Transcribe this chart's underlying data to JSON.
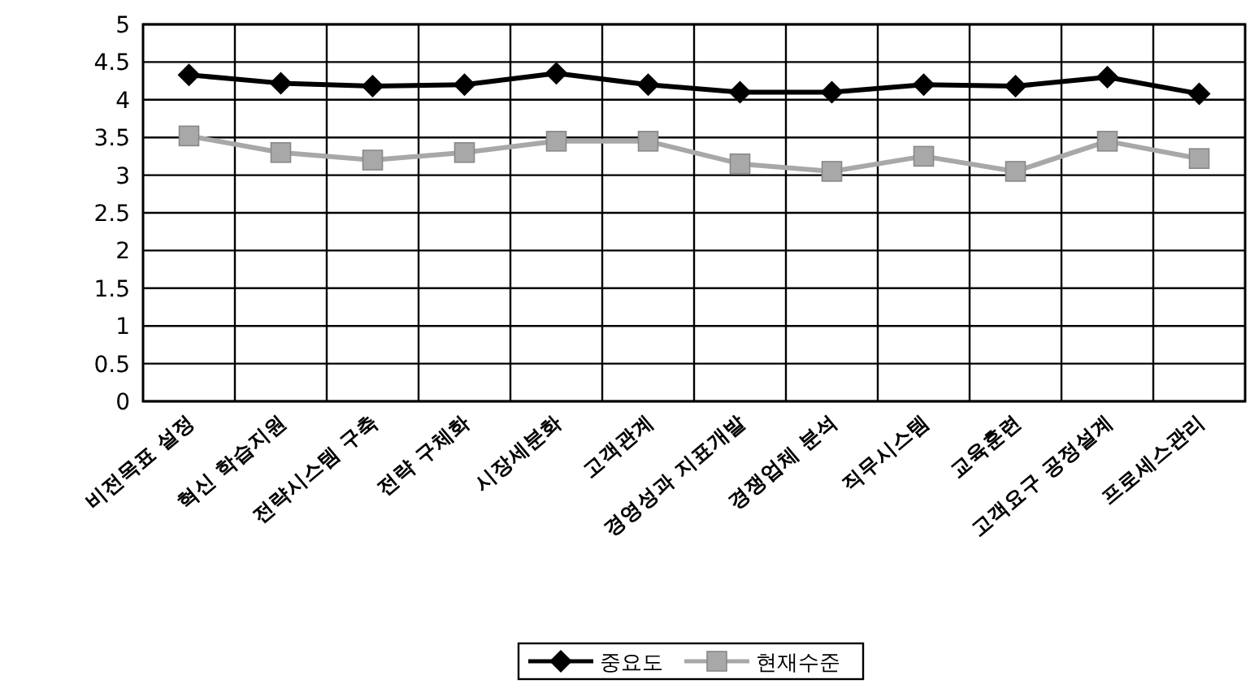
{
  "chart_data": {
    "type": "line",
    "categories": [
      "비전목표 설정",
      "혁신 학습지원",
      "전략시스템 구축",
      "전략 구체화",
      "시장세분화",
      "고객관계",
      "경영성과 지표개발",
      "경쟁업체 분석",
      "직무시스템",
      "교육훈련",
      "고객요구 공정설계",
      "프로세스관리"
    ],
    "series": [
      {
        "name": "중요도",
        "color": "#000000",
        "marker": "diamond",
        "values": [
          4.33,
          4.22,
          4.18,
          4.2,
          4.35,
          4.2,
          4.1,
          4.1,
          4.2,
          4.18,
          4.3,
          4.08
        ]
      },
      {
        "name": "현재수준",
        "color": "#a8a8a8",
        "marker": "square",
        "values": [
          3.52,
          3.3,
          3.2,
          3.3,
          3.45,
          3.45,
          3.15,
          3.05,
          3.25,
          3.05,
          3.45,
          3.22
        ]
      }
    ],
    "ylim": [
      0,
      5
    ],
    "yticks": [
      0,
      0.5,
      1,
      1.5,
      2,
      2.5,
      3,
      3.5,
      4,
      4.5,
      5
    ],
    "grid": true,
    "legend": "bottom"
  }
}
